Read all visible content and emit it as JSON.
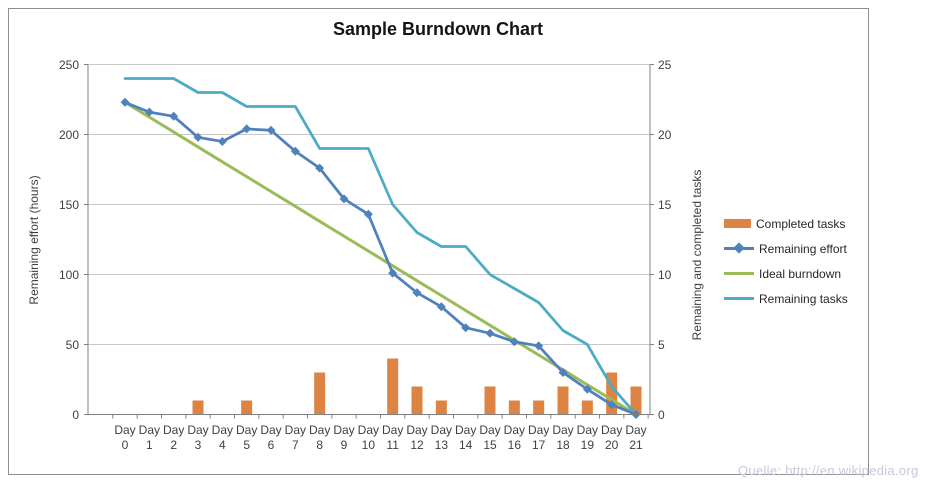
{
  "title": "Sample Burndown Chart",
  "y_axis_left": {
    "label": "Remaining effort (hours)",
    "ticks": [
      0,
      50,
      100,
      150,
      200,
      250
    ],
    "max": 250
  },
  "y_axis_right": {
    "label": "Remaining and  completed tasks",
    "ticks": [
      0,
      5,
      10,
      15,
      20,
      25
    ],
    "max": 25
  },
  "x_axis": {
    "word": "Day",
    "days": [
      0,
      1,
      2,
      3,
      4,
      5,
      6,
      7,
      8,
      9,
      10,
      11,
      12,
      13,
      14,
      15,
      16,
      17,
      18,
      19,
      20,
      21
    ]
  },
  "legend": {
    "items": [
      {
        "label": "Completed tasks",
        "swatch": "bar"
      },
      {
        "label": "Remaining effort",
        "swatch": "line-diamond"
      },
      {
        "label": "Ideal burndown",
        "swatch": "line"
      },
      {
        "label": "Remaining tasks",
        "swatch": "line"
      }
    ]
  },
  "watermark": "Quelle: http://en.wikipedia.org",
  "colors": {
    "bar_orange": "#dd8343",
    "effort_blue": "#4f81bd",
    "ideal_green": "#9bbb59",
    "tasks_teal": "#4bacc6",
    "gridline": "#c8c8c8",
    "axis": "#808080",
    "tick_text": "#3f3f3f",
    "watermark_text": "#c7c7da"
  },
  "chart_data": {
    "type": "combo(bar+line)",
    "title": "Sample Burndown Chart",
    "xlabel": "",
    "ylabel_left": "Remaining effort (hours)",
    "ylabel_right": "Remaining and  completed tasks",
    "ylim_left": [
      0,
      250
    ],
    "ylim_right": [
      0,
      25
    ],
    "grid": true,
    "legend_position": "right",
    "categories": [
      "Day 0",
      "Day 1",
      "Day 2",
      "Day 3",
      "Day 4",
      "Day 5",
      "Day 6",
      "Day 7",
      "Day 8",
      "Day 9",
      "Day 10",
      "Day 11",
      "Day 12",
      "Day 13",
      "Day 14",
      "Day 15",
      "Day 16",
      "Day 17",
      "Day 18",
      "Day 19",
      "Day 20",
      "Day 21"
    ],
    "series": [
      {
        "name": "Completed tasks",
        "type": "bar",
        "axis": "right",
        "color": "#dd8343",
        "values": [
          0,
          0,
          0,
          1,
          0,
          1,
          0,
          0,
          3,
          0,
          0,
          4,
          2,
          1,
          0,
          2,
          1,
          1,
          2,
          1,
          3,
          2
        ]
      },
      {
        "name": "Remaining effort",
        "type": "line",
        "axis": "left",
        "color": "#4f81bd",
        "marker": "diamond",
        "values": [
          223,
          216,
          213,
          198,
          195,
          204,
          203,
          188,
          176,
          154,
          143,
          101,
          87,
          77,
          62,
          58,
          52,
          49,
          30,
          18,
          7,
          0
        ]
      },
      {
        "name": "Ideal burndown",
        "type": "line",
        "axis": "left",
        "color": "#9bbb59",
        "marker": "none",
        "values": [
          223,
          212.4,
          201.8,
          191.1,
          180.5,
          169.9,
          159.3,
          148.7,
          138.0,
          127.4,
          116.8,
          106.2,
          95.6,
          85.0,
          74.3,
          63.7,
          53.1,
          42.5,
          31.9,
          21.2,
          10.6,
          0
        ]
      },
      {
        "name": "Remaining tasks",
        "type": "line",
        "axis": "right",
        "color": "#4bacc6",
        "marker": "none",
        "values": [
          24,
          24,
          24,
          23,
          23,
          22,
          22,
          22,
          19,
          19,
          19,
          15,
          13,
          12,
          12,
          10,
          9,
          8,
          6,
          5,
          2,
          0
        ]
      }
    ]
  }
}
